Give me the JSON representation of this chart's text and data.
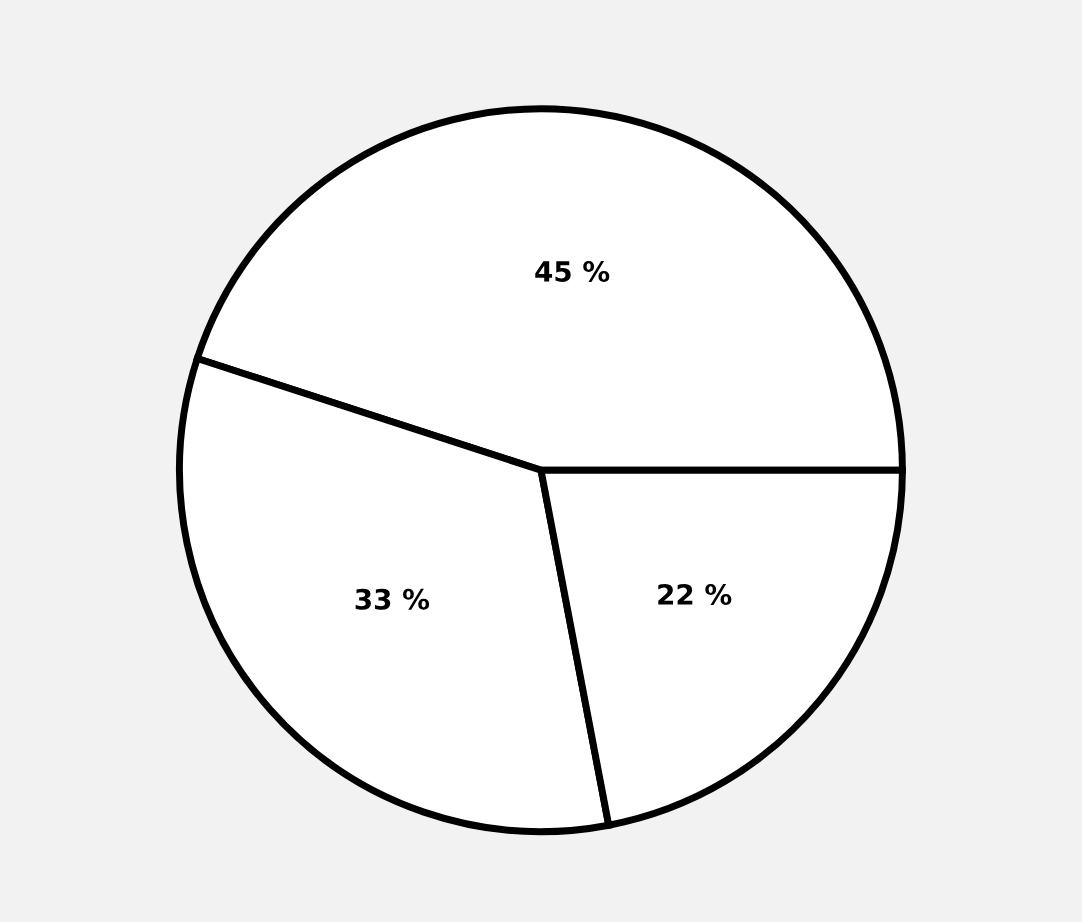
{
  "chart_data": {
    "type": "pie",
    "categories": [
      null,
      null,
      null
    ],
    "values": [
      45,
      33,
      22
    ],
    "value_labels": [
      "45 %",
      "33 %",
      "22 %"
    ],
    "colors": [
      "#ffffff",
      "#ffffff",
      "#ffffff"
    ],
    "legend": false
  }
}
